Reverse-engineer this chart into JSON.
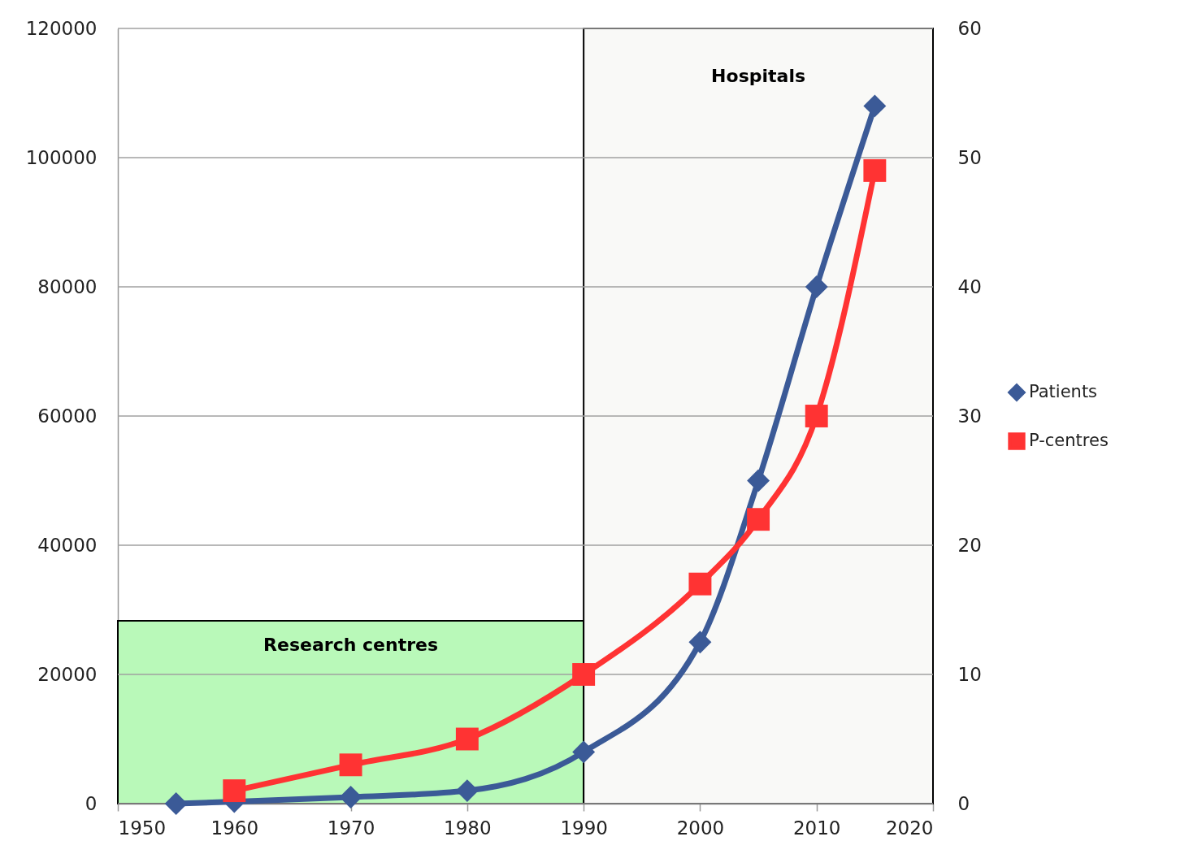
{
  "chart_data": {
    "type": "line",
    "xlim": [
      1950,
      2020
    ],
    "xticks": [
      1950,
      1960,
      1970,
      1980,
      1990,
      2000,
      2010,
      2020
    ],
    "ylim": [
      0,
      120000
    ],
    "yticks": [
      0,
      20000,
      40000,
      60000,
      80000,
      100000,
      120000
    ],
    "y2lim": [
      0,
      60
    ],
    "y2ticks": [
      0,
      10,
      20,
      30,
      40,
      50,
      60
    ],
    "series": [
      {
        "name": "Patients",
        "color": "#3b5a97",
        "marker": "diamond",
        "x": [
          1955,
          1960,
          1970,
          1980,
          1990,
          2000,
          2005,
          2010,
          2015
        ],
        "values": [
          0,
          300,
          1000,
          2000,
          8000,
          25000,
          50000,
          80000,
          108000
        ]
      },
      {
        "name": "P-centres",
        "color": "#ff3333",
        "marker": "square",
        "axis": "y2",
        "x": [
          1960,
          1970,
          1980,
          1990,
          2000,
          2005,
          2010,
          2015
        ],
        "values": [
          1,
          3,
          5,
          10,
          17,
          22,
          30,
          49
        ]
      }
    ],
    "bands": [
      {
        "axis": "x",
        "from": 1950,
        "to": 1990,
        "label": "Research centres",
        "color": "#b9f9b9"
      },
      {
        "axis": "x",
        "from": 1990,
        "to": 2020,
        "label": "Hospitals",
        "color": "#f9f9f7"
      }
    ],
    "grid": "y",
    "legend": "right",
    "line_style": "solid"
  }
}
